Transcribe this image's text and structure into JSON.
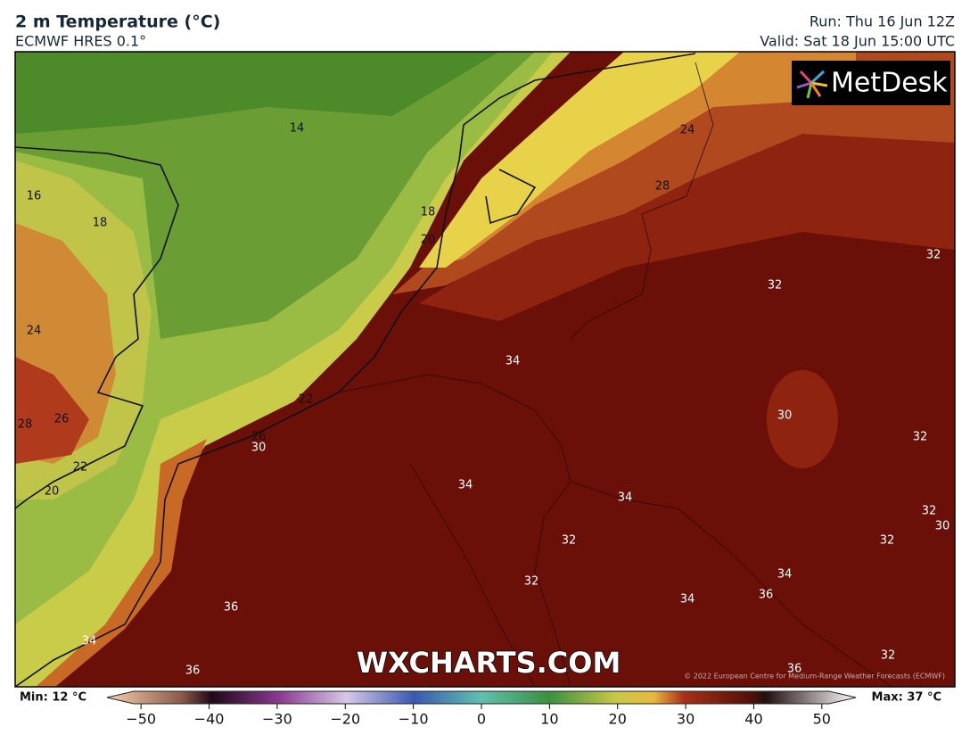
{
  "header": {
    "title": "2 m Temperature (°C)",
    "model": "ECMWF HRES 0.1°",
    "run": "Run: Thu 16 Jun 12Z",
    "valid": "Valid: Sat 18 Jun 15:00 UTC"
  },
  "map": {
    "contour_labels": [
      "14",
      "24",
      "16",
      "18",
      "18",
      "28",
      "20",
      "32",
      "32",
      "24",
      "34",
      "22",
      "30",
      "26",
      "28",
      "26",
      "30",
      "32",
      "22",
      "34",
      "20",
      "34",
      "32",
      "30",
      "32",
      "32",
      "34",
      "32",
      "36",
      "34",
      "36",
      "34",
      "36",
      "36",
      "32"
    ],
    "watermark": "WXCHARTS.COM",
    "logo": "MetDesk",
    "copyright": "© 2022 European Centre for Medium-Range Weather Forecasts (ECMWF)"
  },
  "colorbar": {
    "min_label": "Min: 12 °C",
    "max_label": "Max: 37 °C",
    "range": [
      -55,
      55
    ],
    "ticks": [
      {
        "value": -50,
        "label": "−50"
      },
      {
        "value": -40,
        "label": "−40"
      },
      {
        "value": -30,
        "label": "−30"
      },
      {
        "value": -20,
        "label": "−20"
      },
      {
        "value": -10,
        "label": "−10"
      },
      0,
      10,
      20,
      30,
      40,
      50
    ]
  }
}
